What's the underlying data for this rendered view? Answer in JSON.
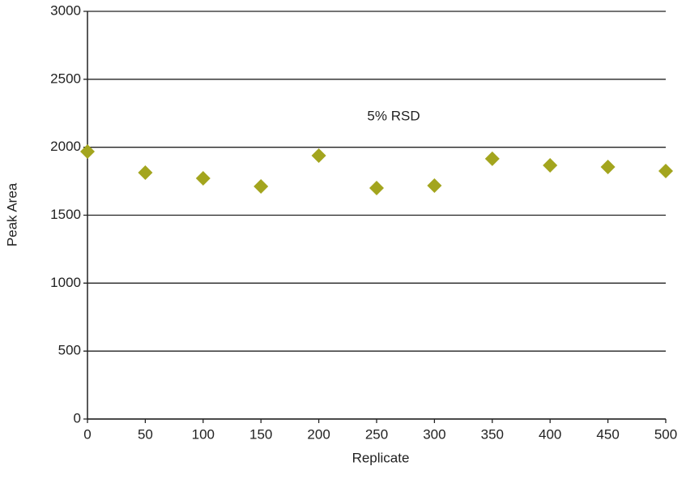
{
  "chart_data": {
    "type": "scatter",
    "x_label": "Replicate",
    "y_label": "Peak Area",
    "annotation": "5% RSD",
    "x": [
      0,
      50,
      100,
      150,
      200,
      250,
      300,
      350,
      400,
      450,
      500
    ],
    "series": [
      {
        "color": "#a3a51e",
        "values": [
          1968,
          1813,
          1771,
          1712,
          1938,
          1700,
          1718,
          1915,
          1867,
          1855,
          1825
        ]
      }
    ],
    "xlim": [
      0,
      500
    ],
    "xticks": [
      0,
      50,
      100,
      150,
      200,
      250,
      300,
      350,
      400,
      450,
      500
    ],
    "ylim": [
      0,
      3000
    ],
    "yticks": [
      0,
      500,
      1000,
      1500,
      2000,
      2500,
      3000
    ],
    "grid": true
  }
}
